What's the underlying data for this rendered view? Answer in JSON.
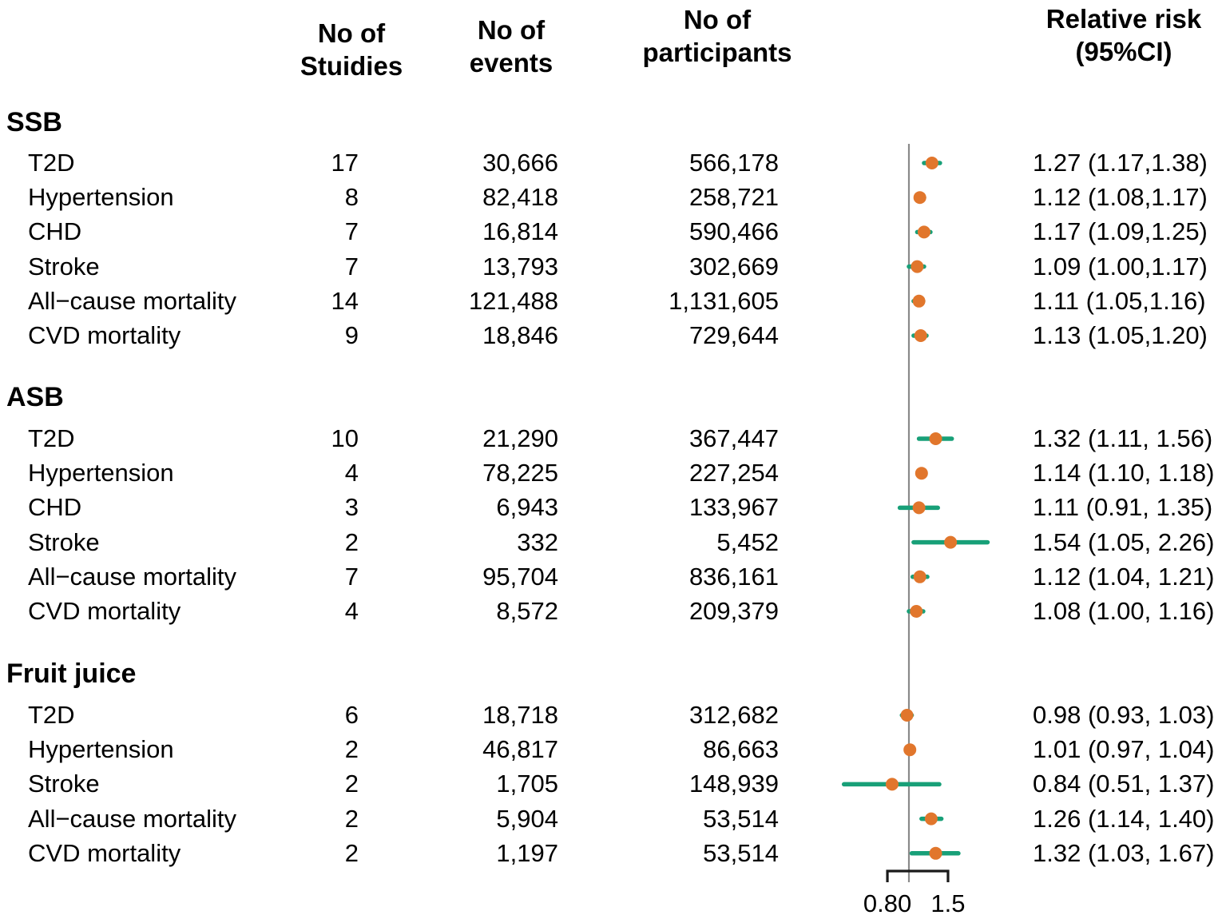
{
  "chart_data": {
    "type": "scatter",
    "subtype": "forest-plot",
    "title": "",
    "column_headers": {
      "studies": {
        "line1": "No of",
        "line2": "Stuidies"
      },
      "events": {
        "line1": "No of",
        "line2": "events"
      },
      "participants": {
        "line1": "No of",
        "line2": "participants"
      },
      "relative_risk": {
        "line1": "Relative risk",
        "line2": "(95%CI)"
      }
    },
    "x_axis": {
      "scale": "log",
      "reference_line": 1.0,
      "ticks": [
        0.8,
        1.5
      ],
      "tick_labels": [
        "0.80",
        "1.5"
      ]
    },
    "colors": {
      "point": "#E1762C",
      "ci_bar": "#18A078",
      "reference_line": "#8A8A8A",
      "axis": "#1A1A1A",
      "text": "#000000"
    },
    "sections": [
      {
        "label": "SSB",
        "rows": [
          {
            "outcome": "T2D",
            "studies": "17",
            "events": "30,666",
            "participants": "566,178",
            "rr": 1.27,
            "ci_low": 1.17,
            "ci_high": 1.38,
            "rr_ci_text": "1.27 (1.17,1.38)"
          },
          {
            "outcome": "Hypertension",
            "studies": "8",
            "events": "82,418",
            "participants": "258,721",
            "rr": 1.12,
            "ci_low": 1.08,
            "ci_high": 1.17,
            "rr_ci_text": "1.12 (1.08,1.17)"
          },
          {
            "outcome": "CHD",
            "studies": "7",
            "events": "16,814",
            "participants": "590,466",
            "rr": 1.17,
            "ci_low": 1.09,
            "ci_high": 1.25,
            "rr_ci_text": "1.17 (1.09,1.25)"
          },
          {
            "outcome": "Stroke",
            "studies": "7",
            "events": "13,793",
            "participants": "302,669",
            "rr": 1.09,
            "ci_low": 1.0,
            "ci_high": 1.17,
            "rr_ci_text": "1.09 (1.00,1.17)"
          },
          {
            "outcome": "All−cause mortality",
            "studies": "14",
            "events": "121,488",
            "participants": "1,131,605",
            "rr": 1.11,
            "ci_low": 1.05,
            "ci_high": 1.16,
            "rr_ci_text": "1.11 (1.05,1.16)"
          },
          {
            "outcome": "CVD mortality",
            "studies": "9",
            "events": "18,846",
            "participants": "729,644",
            "rr": 1.13,
            "ci_low": 1.05,
            "ci_high": 1.2,
            "rr_ci_text": "1.13 (1.05,1.20)"
          }
        ]
      },
      {
        "label": "ASB",
        "rows": [
          {
            "outcome": "T2D",
            "studies": "10",
            "events": "21,290",
            "participants": "367,447",
            "rr": 1.32,
            "ci_low": 1.11,
            "ci_high": 1.56,
            "rr_ci_text": "1.32 (1.11, 1.56)"
          },
          {
            "outcome": "Hypertension",
            "studies": "4",
            "events": "78,225",
            "participants": "227,254",
            "rr": 1.14,
            "ci_low": 1.1,
            "ci_high": 1.18,
            "rr_ci_text": "1.14 (1.10, 1.18)"
          },
          {
            "outcome": "CHD",
            "studies": "3",
            "events": "6,943",
            "participants": "133,967",
            "rr": 1.11,
            "ci_low": 0.91,
            "ci_high": 1.35,
            "rr_ci_text": "1.11 (0.91, 1.35)"
          },
          {
            "outcome": "Stroke",
            "studies": "2",
            "events": "332",
            "participants": "5,452",
            "rr": 1.54,
            "ci_low": 1.05,
            "ci_high": 2.26,
            "rr_ci_text": "1.54 (1.05, 2.26)"
          },
          {
            "outcome": "All−cause mortality",
            "studies": "7",
            "events": "95,704",
            "participants": "836,161",
            "rr": 1.12,
            "ci_low": 1.04,
            "ci_high": 1.21,
            "rr_ci_text": "1.12 (1.04, 1.21)"
          },
          {
            "outcome": "CVD mortality",
            "studies": "4",
            "events": "8,572",
            "participants": "209,379",
            "rr": 1.08,
            "ci_low": 1.0,
            "ci_high": 1.16,
            "rr_ci_text": "1.08 (1.00, 1.16)"
          }
        ]
      },
      {
        "label": "Fruit juice",
        "rows": [
          {
            "outcome": "T2D",
            "studies": "6",
            "events": "18,718",
            "participants": "312,682",
            "rr": 0.98,
            "ci_low": 0.93,
            "ci_high": 1.03,
            "rr_ci_text": "0.98 (0.93, 1.03)"
          },
          {
            "outcome": "Hypertension",
            "studies": "2",
            "events": "46,817",
            "participants": "86,663",
            "rr": 1.01,
            "ci_low": 0.97,
            "ci_high": 1.04,
            "rr_ci_text": "1.01 (0.97, 1.04)"
          },
          {
            "outcome": "Stroke",
            "studies": "2",
            "events": "1,705",
            "participants": "148,939",
            "rr": 0.84,
            "ci_low": 0.51,
            "ci_high": 1.37,
            "rr_ci_text": "0.84 (0.51, 1.37)"
          },
          {
            "outcome": "All−cause mortality",
            "studies": "2",
            "events": "5,904",
            "participants": "53,514",
            "rr": 1.26,
            "ci_low": 1.14,
            "ci_high": 1.4,
            "rr_ci_text": "1.26 (1.14, 1.40)"
          },
          {
            "outcome": "CVD mortality",
            "studies": "2",
            "events": "1,197",
            "participants": "53,514",
            "rr": 1.32,
            "ci_low": 1.03,
            "ci_high": 1.67,
            "rr_ci_text": "1.32 (1.03, 1.67)"
          }
        ]
      }
    ]
  }
}
